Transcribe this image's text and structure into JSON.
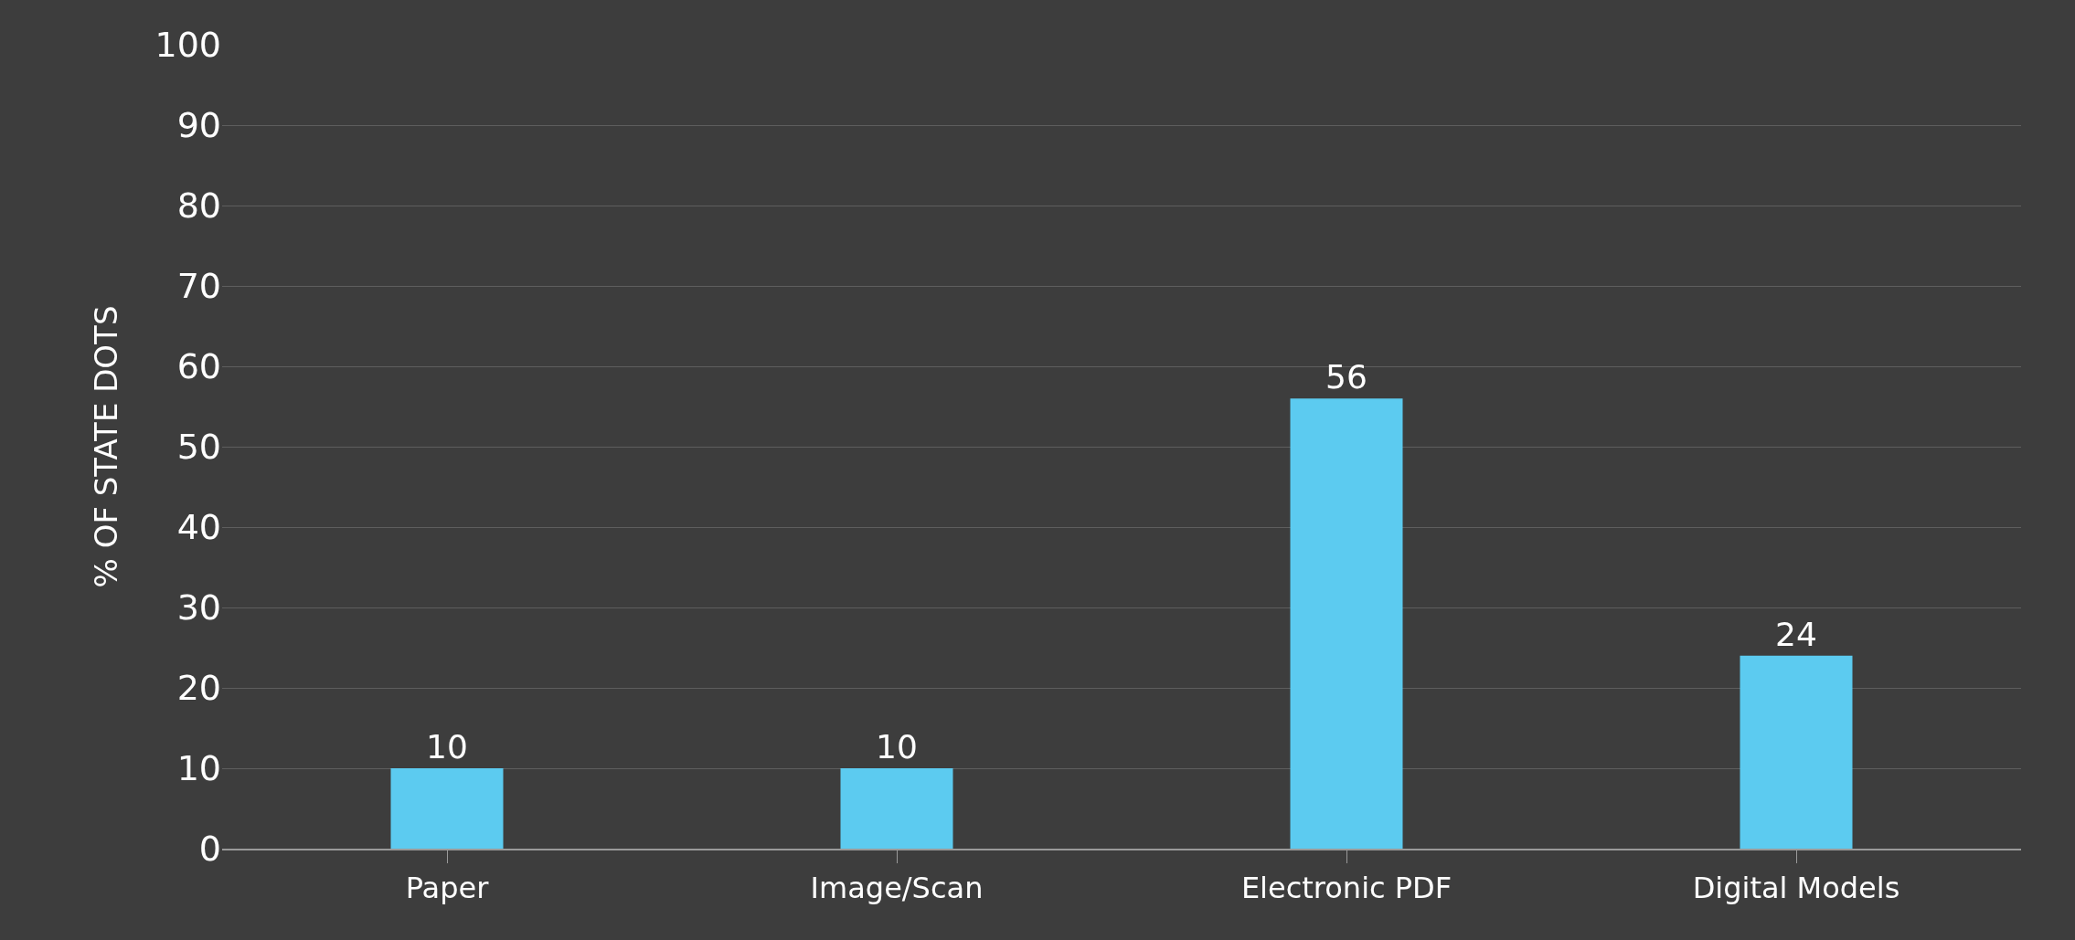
{
  "chart_data": {
    "type": "bar",
    "ylabel": "% OF STATE DOTS",
    "categories": [
      "Paper",
      "Image/Scan",
      "Electronic PDF",
      "Digital Models"
    ],
    "values": [
      10,
      10,
      56,
      24
    ],
    "color": "#5ccbf0",
    "ylim": [
      0,
      100
    ],
    "yticks": [
      0,
      10,
      20,
      30,
      40,
      50,
      60,
      70,
      80,
      90,
      100
    ],
    "grid": "y",
    "data_labels": true
  }
}
